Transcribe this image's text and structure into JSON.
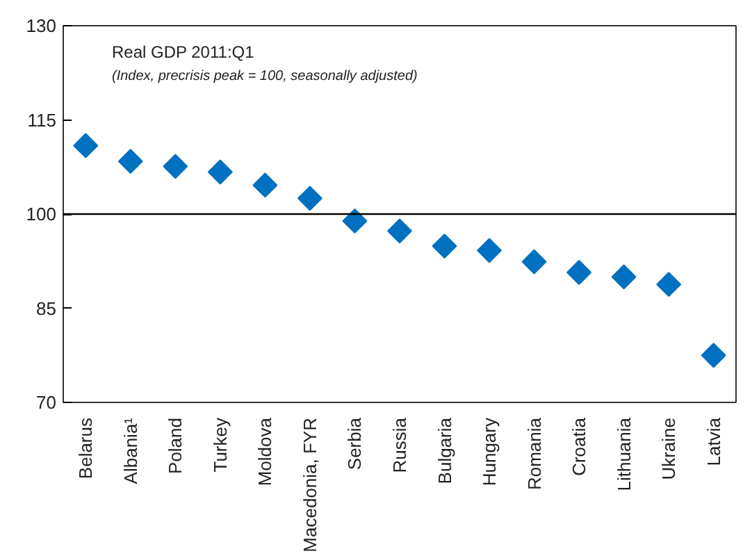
{
  "chart_data": {
    "type": "scatter",
    "title": "Real GDP 2011:Q1",
    "subtitle": "(Index, precrisis peak = 100, seasonally adjusted)",
    "categories": [
      "Belarus",
      "Albania¹",
      "Poland",
      "Turkey",
      "Moldova",
      "Macedonia, FYR",
      "Serbia",
      "Russia",
      "Bulgaria",
      "Hungary",
      "Romania",
      "Croatia",
      "Lithuania",
      "Ukraine",
      "Latvia"
    ],
    "series": [
      {
        "color": "#0070c0",
        "values": [
          110.9,
          108.4,
          107.6,
          106.7,
          104.6,
          102.5,
          98.9,
          97.3,
          94.9,
          94.2,
          92.4,
          90.7,
          90.0,
          88.8,
          77.5
        ]
      }
    ],
    "ylim": [
      70,
      130
    ],
    "yticks": [
      70,
      85,
      100,
      115,
      130
    ],
    "grid": false,
    "marker": "diamond",
    "ref_lines": [
      {
        "axis": "y",
        "value": 100,
        "color": "#000000"
      }
    ]
  }
}
